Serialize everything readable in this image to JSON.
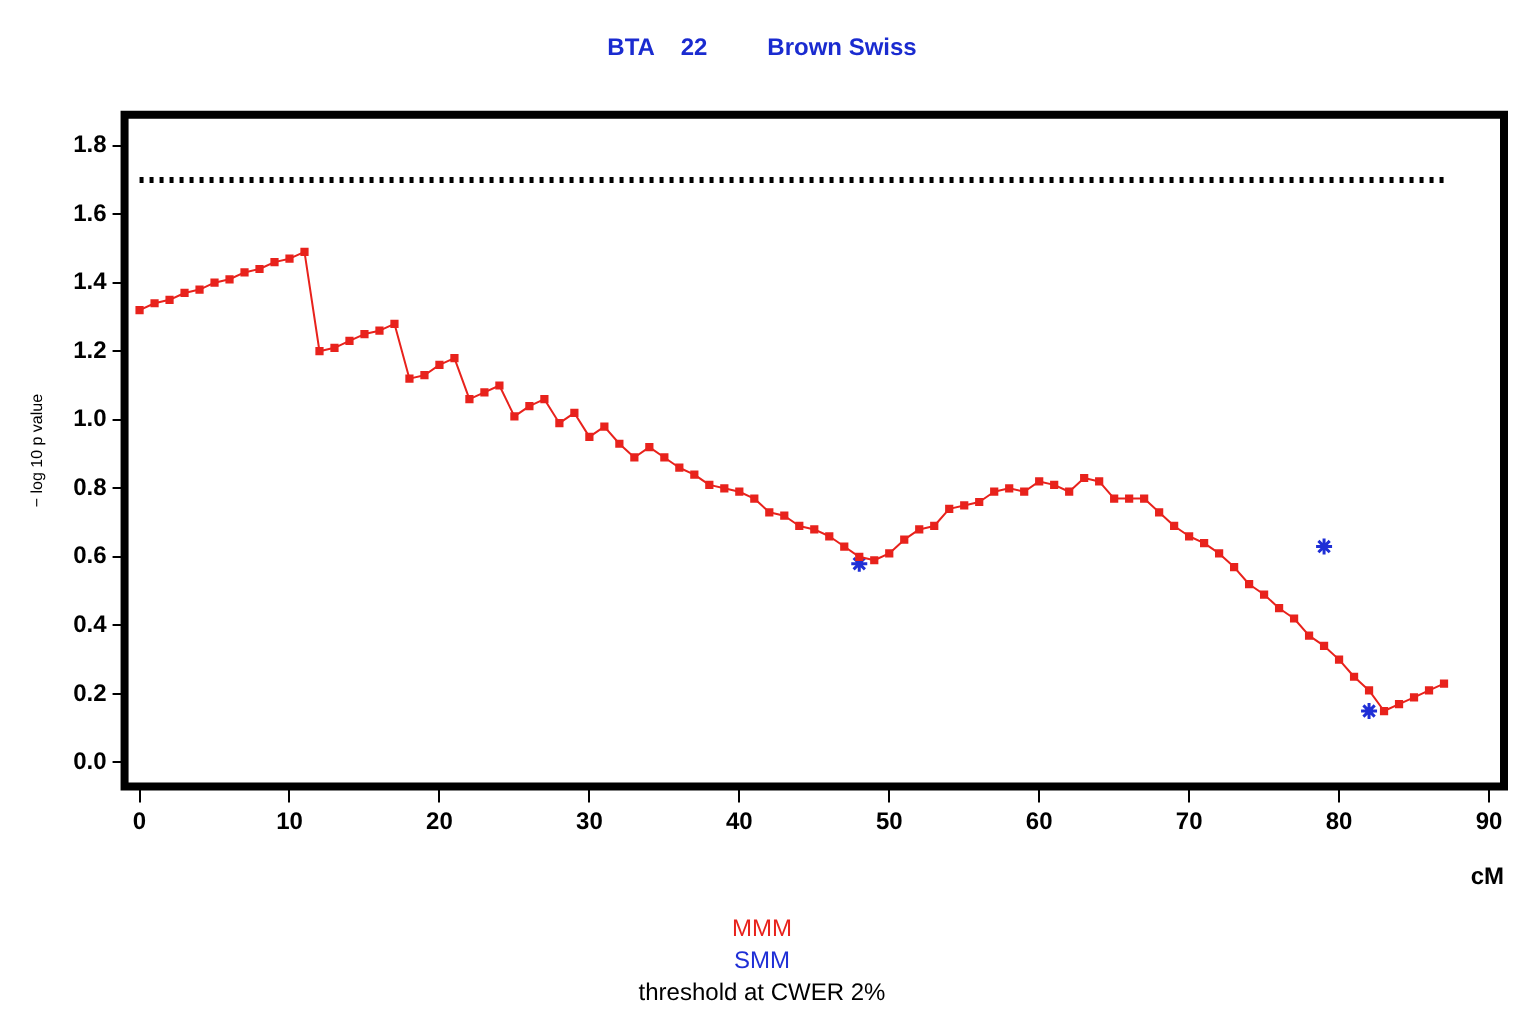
{
  "chart_data": {
    "type": "line",
    "title": "BTA    22         Brown Swiss",
    "xlabel": "cM",
    "ylabel": "− log 10 p value",
    "xlim": [
      -1,
      91
    ],
    "xticks": [
      0,
      10,
      20,
      30,
      40,
      50,
      60,
      70,
      80,
      90
    ],
    "ylim": [
      -0.07,
      1.89
    ],
    "yticks": [
      {
        "value": 0,
        "label": "0.0"
      },
      {
        "value": 0.2,
        "label": "0.2"
      },
      {
        "value": 0.4,
        "label": "0.4"
      },
      {
        "value": 0.6,
        "label": "0.6"
      },
      {
        "value": 0.8,
        "label": "0.8"
      },
      {
        "value": 1,
        "label": "1.0"
      },
      {
        "value": 1.2,
        "label": "1.2"
      },
      {
        "value": 1.4,
        "label": "1.4"
      },
      {
        "value": 1.6,
        "label": "1.6"
      },
      {
        "value": 1.8,
        "label": "1.8"
      }
    ],
    "legend": "bottom",
    "series": [
      {
        "name": "MMM",
        "color": "#e8221c",
        "marker": "square",
        "x": [
          0,
          1,
          2,
          3,
          4,
          5,
          6,
          7,
          8,
          9,
          10,
          11,
          12,
          13,
          14,
          15,
          16,
          17,
          18,
          19,
          20,
          21,
          22,
          23,
          24,
          25,
          26,
          27,
          28,
          29,
          30,
          31,
          32,
          33,
          34,
          35,
          36,
          37,
          38,
          39,
          40,
          41,
          42,
          43,
          44,
          45,
          46,
          47,
          48,
          49,
          50,
          51,
          52,
          53,
          54,
          55,
          56,
          57,
          58,
          59,
          60,
          61,
          62,
          63,
          64,
          65,
          66,
          67,
          68,
          69,
          70,
          71,
          72,
          73,
          74,
          75,
          76,
          77,
          78,
          79,
          80,
          81,
          82,
          83,
          84,
          85,
          86,
          87
        ],
        "values": [
          1.32,
          1.34,
          1.35,
          1.37,
          1.38,
          1.4,
          1.41,
          1.43,
          1.44,
          1.46,
          1.47,
          1.49,
          1.2,
          1.21,
          1.23,
          1.25,
          1.26,
          1.28,
          1.12,
          1.13,
          1.16,
          1.18,
          1.06,
          1.08,
          1.1,
          1.01,
          1.04,
          1.06,
          0.99,
          1.02,
          0.95,
          0.98,
          0.93,
          0.89,
          0.92,
          0.89,
          0.86,
          0.84,
          0.81,
          0.8,
          0.79,
          0.77,
          0.73,
          0.72,
          0.69,
          0.68,
          0.66,
          0.63,
          0.6,
          0.59,
          0.61,
          0.65,
          0.68,
          0.69,
          0.74,
          0.75,
          0.76,
          0.79,
          0.8,
          0.79,
          0.82,
          0.81,
          0.79,
          0.83,
          0.82,
          0.77,
          0.77,
          0.77,
          0.73,
          0.69,
          0.66,
          0.64,
          0.61,
          0.57,
          0.52,
          0.49,
          0.45,
          0.42,
          0.37,
          0.34,
          0.3,
          0.25,
          0.21,
          0.15,
          0.17,
          0.19,
          0.21,
          0.23
        ]
      },
      {
        "name": "SMM",
        "color": "#1f2fd6",
        "type": "scatter",
        "marker": "cross",
        "x": [
          48,
          79,
          82
        ],
        "values": [
          0.58,
          0.63,
          0.15
        ]
      },
      {
        "name": "threshold at CWER 2%",
        "color": "#000000",
        "type": "line",
        "marker": "none",
        "line_style": "dotted",
        "x": [
          0,
          87
        ],
        "values": [
          1.7,
          1.7
        ]
      }
    ]
  }
}
